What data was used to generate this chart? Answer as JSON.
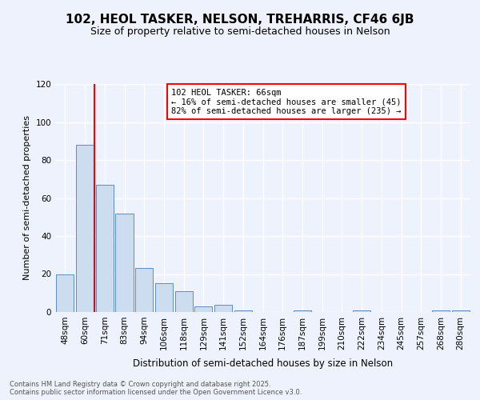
{
  "title": "102, HEOL TASKER, NELSON, TREHARRIS, CF46 6JB",
  "subtitle": "Size of property relative to semi-detached houses in Nelson",
  "xlabel": "Distribution of semi-detached houses by size in Nelson",
  "ylabel": "Number of semi-detached properties",
  "bins": [
    "48sqm",
    "60sqm",
    "71sqm",
    "83sqm",
    "94sqm",
    "106sqm",
    "118sqm",
    "129sqm",
    "141sqm",
    "152sqm",
    "164sqm",
    "176sqm",
    "187sqm",
    "199sqm",
    "210sqm",
    "222sqm",
    "234sqm",
    "245sqm",
    "257sqm",
    "268sqm",
    "280sqm"
  ],
  "bar_heights": [
    20,
    88,
    67,
    52,
    23,
    15,
    11,
    3,
    4,
    1,
    0,
    0,
    1,
    0,
    0,
    1,
    0,
    0,
    0,
    1,
    1
  ],
  "bar_color": "#ccddf0",
  "bar_edge_color": "#5b8cc8",
  "vline_x": 1.5,
  "annotation_text": "102 HEOL TASKER: 66sqm\n← 16% of semi-detached houses are smaller (45)\n82% of semi-detached houses are larger (235) →",
  "vline_color": "red",
  "annotation_box_edgecolor": "red",
  "ylim": [
    0,
    120
  ],
  "yticks": [
    0,
    20,
    40,
    60,
    80,
    100,
    120
  ],
  "footer_text": "Contains HM Land Registry data © Crown copyright and database right 2025.\nContains public sector information licensed under the Open Government Licence v3.0.",
  "bg_color": "#edf2fc",
  "plot_bg_color": "#edf2fc",
  "grid_color": "#ffffff",
  "title_fontsize": 11,
  "subtitle_fontsize": 9,
  "annotation_fontsize": 7.5,
  "ylabel_fontsize": 8,
  "xlabel_fontsize": 8.5,
  "tick_fontsize": 7.5
}
